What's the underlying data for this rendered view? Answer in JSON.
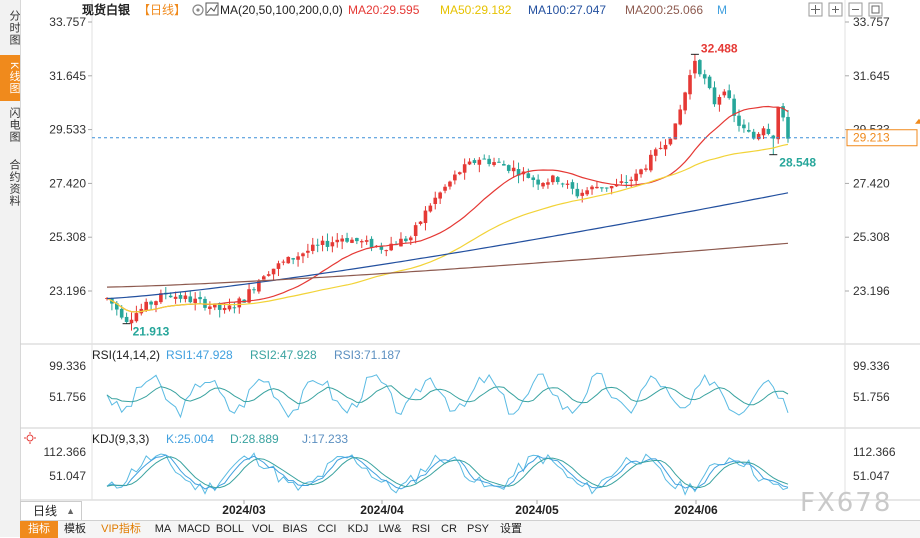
{
  "sidebar": {
    "tabs": [
      {
        "label": "分时图",
        "active": false
      },
      {
        "label": "K线图",
        "active": true
      },
      {
        "label": "闪电图",
        "active": false
      },
      {
        "label": "合约资料",
        "active": false
      }
    ]
  },
  "header": {
    "symbol": "现货白银",
    "period": "【日线】",
    "ma_label": "MA(20,50,100,200,0,0)",
    "ma20": "MA20:29.595",
    "ma50": "MA50:29.182",
    "ma100": "MA100:27.047",
    "ma200": "MA200:25.066",
    "m_link": "M"
  },
  "colors": {
    "up": "#e53935",
    "down": "#26a69a",
    "ma20": "#e53935",
    "ma50": "#f2d338",
    "ma100": "#23509f",
    "ma200": "#8d5a4f",
    "rsi1": "#41a0df",
    "rsi2": "#3aa3a0",
    "rsi3": "#5bbbe3",
    "k": "#41a0df",
    "d": "#3aa3a0",
    "j": "#5bbbe3"
  },
  "rsi_header": {
    "name": "RSI(14,14,2)",
    "rsi1": "RSI1:47.928",
    "rsi2": "RSI2:47.928",
    "rsi3": "RSI3:71.187"
  },
  "kdj_header": {
    "name": "KDJ(9,3,3)",
    "k": "K:25.004",
    "d": "D:28.889",
    "j": "J:17.233"
  },
  "chart_data": [
    {
      "type": "candlestick",
      "title": "现货白银 【日线】",
      "y_ticks": [
        "33.757",
        "31.645",
        "29.533",
        "27.420",
        "25.308",
        "23.196"
      ],
      "ylim": [
        21.2,
        33.9
      ],
      "x_ticks": [
        "2024/03",
        "2024/04",
        "2024/05",
        "2024/06"
      ],
      "current_price": "29.213",
      "annotations": [
        {
          "label": "32.488",
          "type": "high"
        },
        {
          "label": "21.913",
          "type": "low"
        },
        {
          "label": "28.548",
          "type": "recent-low"
        }
      ],
      "series": [
        {
          "name": "MA20",
          "value": 29.595
        },
        {
          "name": "MA50",
          "value": 29.182
        },
        {
          "name": "MA100",
          "value": 27.047
        },
        {
          "name": "MA200",
          "value": 25.066
        }
      ]
    },
    {
      "type": "line",
      "title": "RSI(14,14,2)",
      "y_ticks": [
        "99.336",
        "51.756"
      ],
      "series": [
        {
          "name": "RSI1",
          "value": 47.928
        },
        {
          "name": "RSI2",
          "value": 47.928
        },
        {
          "name": "RSI3",
          "value": 71.187
        }
      ]
    },
    {
      "type": "line",
      "title": "KDJ(9,3,3)",
      "y_ticks": [
        "112.366",
        "51.047"
      ],
      "series": [
        {
          "name": "K",
          "value": 25.004
        },
        {
          "name": "D",
          "value": 28.889
        },
        {
          "name": "J",
          "value": 17.233
        }
      ]
    }
  ],
  "period_select": {
    "label": "日线"
  },
  "bottom_tabs": [
    "指标",
    "模板",
    "VIP指标",
    "MA",
    "MACD",
    "BOLL",
    "VOL",
    "BIAS",
    "CCI",
    "KDJ",
    "LW&",
    "RSI",
    "CR",
    "PSY",
    "设置"
  ],
  "watermark": "FX678"
}
